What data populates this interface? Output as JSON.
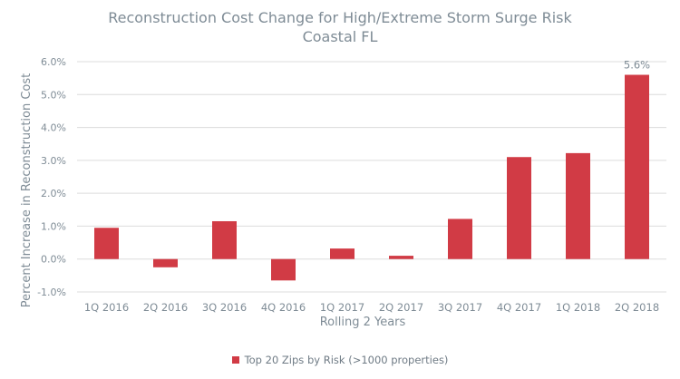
{
  "chart_data": {
    "type": "bar",
    "title": "Reconstruction Cost Change for High/Extreme Storm Surge Risk",
    "subtitle": "Coastal FL",
    "xlabel": "Rolling 2 Years",
    "ylabel": "Percent Increase in Reconstruction Cost",
    "categories": [
      "1Q 2016",
      "2Q 2016",
      "3Q 2016",
      "4Q 2016",
      "1Q 2017",
      "2Q 2017",
      "3Q 2017",
      "4Q 2017",
      "1Q 2018",
      "2Q 2018"
    ],
    "series": [
      {
        "name": "Top 20 Zips by Risk (>1000 properties)",
        "values": [
          0.95,
          -0.25,
          1.15,
          -0.65,
          0.32,
          0.1,
          1.22,
          3.1,
          3.22,
          5.6
        ]
      }
    ],
    "ylim": [
      -1.0,
      6.0
    ],
    "yticks": [
      "-1.0%",
      "0.0%",
      "1.0%",
      "2.0%",
      "3.0%",
      "4.0%",
      "5.0%",
      "6.0%"
    ],
    "data_labels": [
      {
        "category": "2Q 2018",
        "text": "5.6%"
      }
    ],
    "grid": true,
    "legend_position": "bottom",
    "colors": {
      "bar": "#d13b45",
      "grid": "#dcdcdc",
      "text": "#7f8c96"
    }
  }
}
